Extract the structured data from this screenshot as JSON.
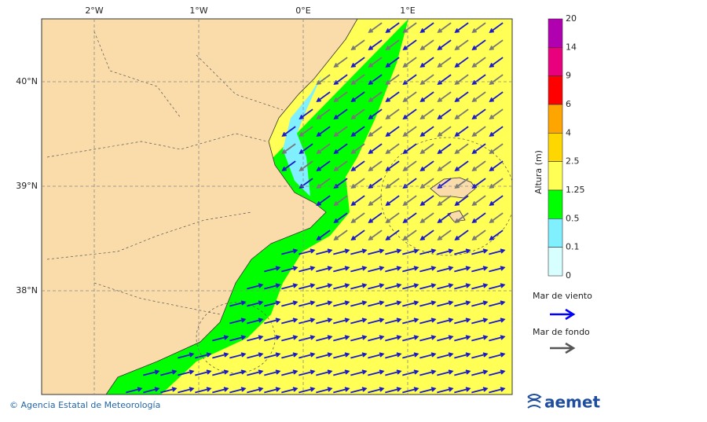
{
  "map": {
    "lon_labels": [
      "2°W",
      "1°W",
      "0°E",
      "1°E"
    ],
    "lat_labels": [
      "40°N",
      "39°N",
      "38°N"
    ],
    "colorbar": {
      "title": "Altura (m)",
      "levels": [
        20,
        14,
        9,
        6,
        4,
        2.5,
        1.25,
        0.5,
        0.1,
        0
      ],
      "colors": [
        "#b000b0",
        "#e8007c",
        "#ff0000",
        "#ffa500",
        "#ffd700",
        "#ffff55",
        "#00ff00",
        "#80f0ff",
        "#d8ffff"
      ]
    },
    "legend": {
      "wind_sea": "Mar de viento",
      "swell": "Mar de fondo"
    },
    "footer": {
      "credit": "© Agencia Estatal de Meteorología",
      "logo": "aemet"
    }
  }
}
